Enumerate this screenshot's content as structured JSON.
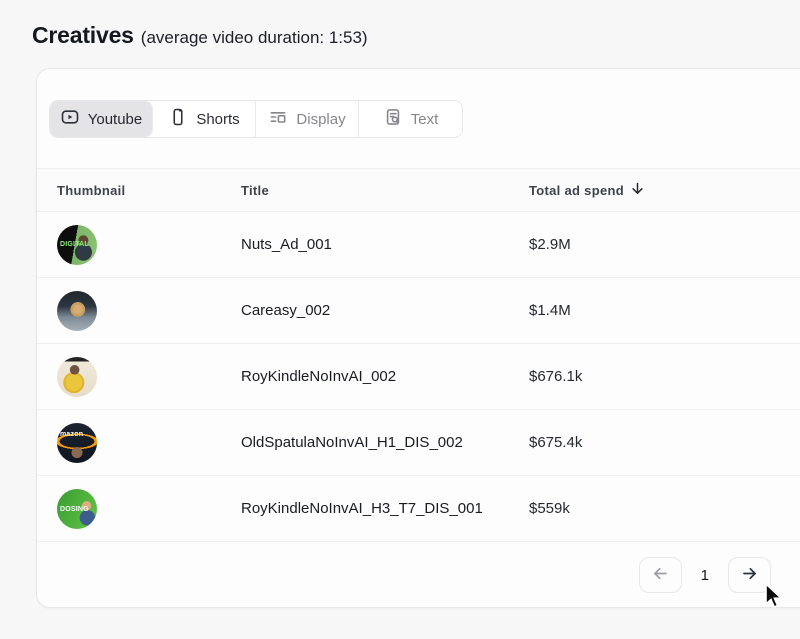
{
  "header": {
    "title": "Creatives",
    "subtitle": "(average video duration: 1:53)"
  },
  "tabs": [
    {
      "label": "Youtube",
      "icon": "youtube-play-icon",
      "active": true
    },
    {
      "label": "Shorts",
      "icon": "phone-icon",
      "active": false
    },
    {
      "label": "Display",
      "icon": "list-layout-icon",
      "active": false
    },
    {
      "label": "Text",
      "icon": "file-search-icon",
      "active": false
    }
  ],
  "table": {
    "columns": [
      "Thumbnail",
      "Title",
      "Total ad spend"
    ],
    "sort": {
      "column": "Total ad spend",
      "direction": "desc"
    },
    "rows": [
      {
        "title": "Nuts_Ad_001",
        "spend": "$2.9M",
        "thumb": {
          "description": "woman at desk, dark left panel with green DIGITAL text, green background",
          "bg": "radial-gradient(circle at 66% 38%, #5c4632 0 13%, rgba(0,0,0,0) 14%), radial-gradient(circle at 66% 68%, #2e3b44 0 22%, rgba(0,0,0,0) 23%), linear-gradient(100deg, #0d0d0d 0%, #0d0d0d 45%, #7cb566 45%, #8cc472 100%)",
          "text": "DIGITAL",
          "color": "#8ef07a",
          "text_top": "42%"
        }
      },
      {
        "title": "Careasy_002",
        "spend": "$1.4M",
        "thumb": {
          "description": "blonde woman smiling in a car",
          "bg": "radial-gradient(circle at 52% 46%, #d9ab76 0 15%, #caa05f 16% 24%, rgba(0,0,0,0) 25%), linear-gradient(180deg, #20262b 0%, #2c363f 38%, #7d8b97 66%, #a7b0b8 100%)",
          "text": "",
          "color": "",
          "text_top": "40%"
        }
      },
      {
        "title": "RoyKindleNoInvAI_002",
        "spend": "$676.1k",
        "thumb": {
          "description": "woman in yellow top seated, bright room",
          "bg": "radial-gradient(circle at 44% 32%, #6e5340 0 13%, rgba(0,0,0,0) 14%), radial-gradient(circle at 42% 64%, #eac63d 0 24%, #dfb52e 25% 30%, rgba(0,0,0,0) 31%), linear-gradient(180deg, #232323 0%, #232323 11%, #efe8da 11%, #e6dcc9 100%)",
          "text": "",
          "color": "",
          "text_top": "40%"
        }
      },
      {
        "title": "OldSpatulaNoInvAI_H1_DIS_002",
        "spend": "$675.4k",
        "thumb": {
          "description": "man in front of dark amazon-style logo with orange swoosh",
          "bg": "radial-gradient(circle at 50% 74%, #8a6a50 0 15%, rgba(0,0,0,0) 16%), radial-gradient(60% 22% at 50% 46%, rgba(0,0,0,0) 0 72%, #ff9900 73% 88%, rgba(0,0,0,0) 89%), linear-gradient(180deg, #1b2430 0%, #10161f 100%)",
          "text": "mazon",
          "color": "#ffffff",
          "text_top": "22%"
        }
      },
      {
        "title": "RoyKindleNoInvAI_H3_T7_DIS_001",
        "spend": "$559k",
        "thumb": {
          "description": "green thumbnail with bold white text and woman at right",
          "bg": "radial-gradient(circle at 74% 42%, #dcae7d 0 12%, rgba(0,0,0,0) 13%), radial-gradient(circle at 76% 72%, #3d5e8c 0 18%, rgba(0,0,0,0) 19%), linear-gradient(115deg, #3c9a34 0%, #4fb33c 55%, #63c24a 100%)",
          "text": "DOSING",
          "color": "#ffffff",
          "text_top": "44%"
        }
      }
    ]
  },
  "pagination": {
    "page": "1",
    "prev_enabled": false,
    "next_enabled": true
  },
  "colors": {
    "active_tab_bg": "#e4e4e7",
    "card_border": "#e7e7ea",
    "accent_text": "#16181f",
    "muted_text": "#85858e"
  }
}
